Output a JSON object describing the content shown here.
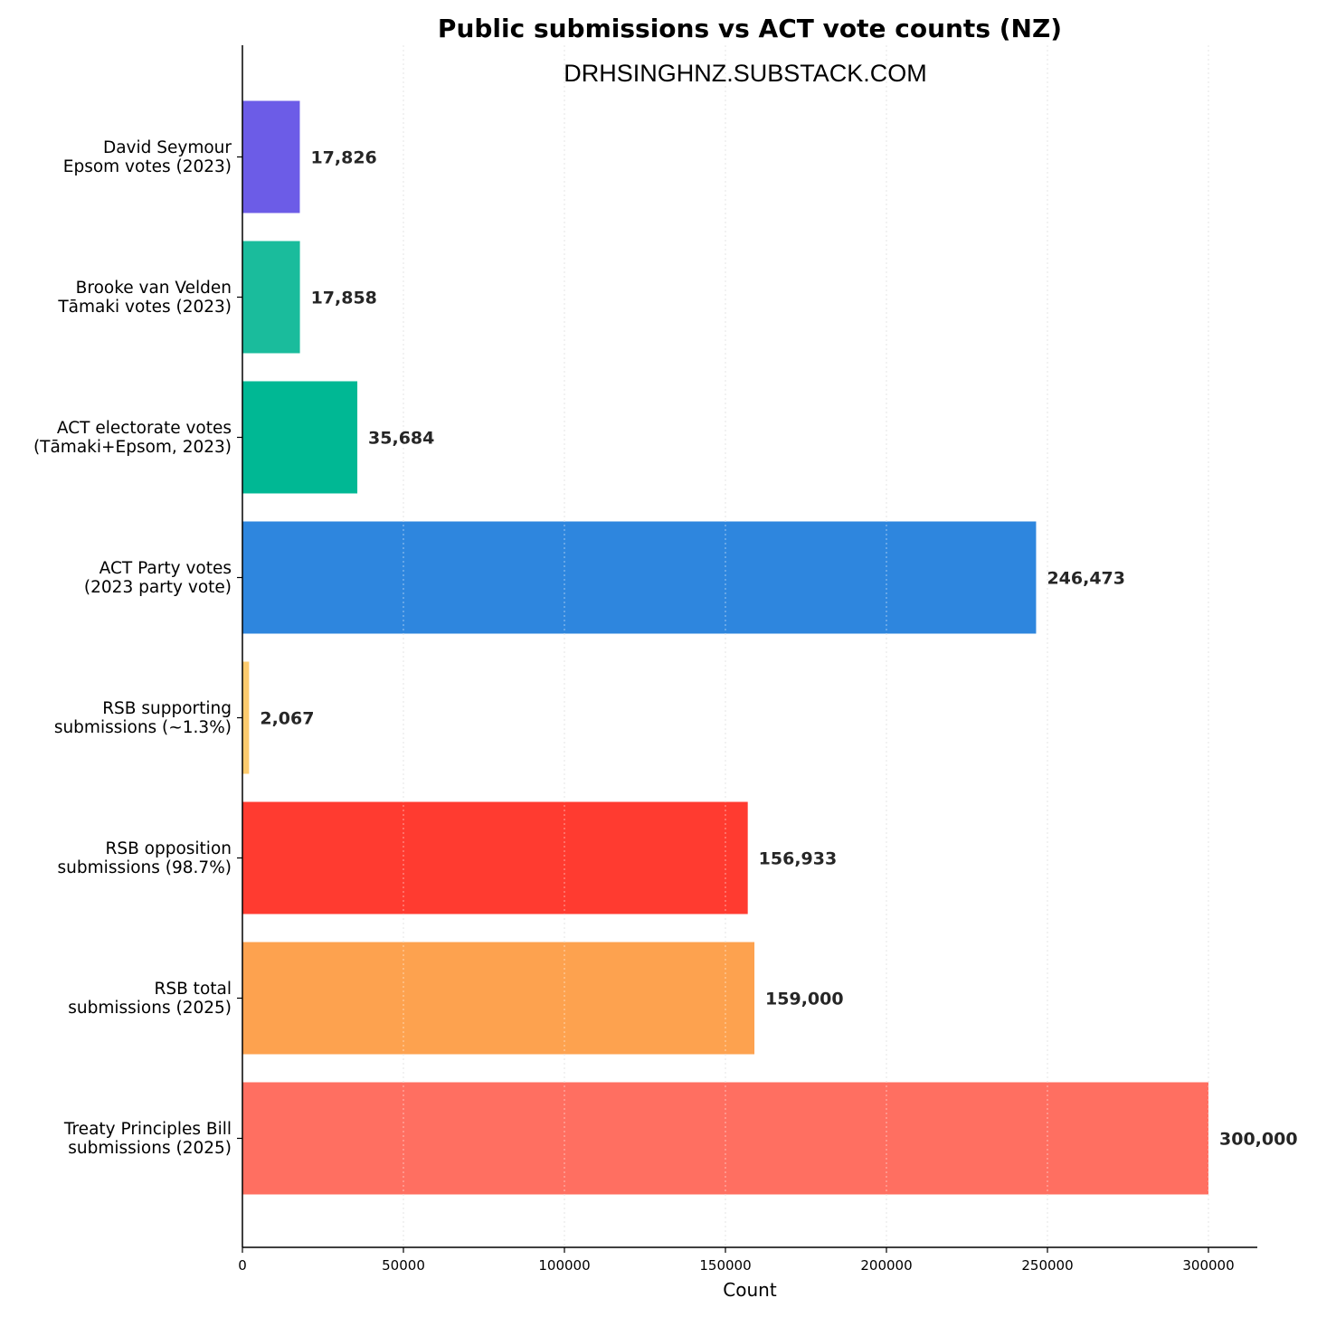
{
  "chart_data": {
    "type": "bar",
    "orientation": "horizontal",
    "title": "Public submissions vs ACT vote counts (NZ)",
    "watermark": "DRHSINGHNZ.SUBSTACK.COM",
    "xlabel": "Count",
    "ylabel": "",
    "xlim": [
      0,
      315000
    ],
    "x_ticks": [
      0,
      50000,
      100000,
      150000,
      200000,
      250000,
      300000
    ],
    "x_tick_labels": [
      "0",
      "50000",
      "100000",
      "150000",
      "200000",
      "250000",
      "300000"
    ],
    "grid": "vertical dotted",
    "legend": "none",
    "categories": [
      [
        "David Seymour",
        "Epsom votes (2023)"
      ],
      [
        "Brooke van Velden",
        "Tāmaki votes (2023)"
      ],
      [
        "ACT electorate votes",
        "(Tāmaki+Epsom, 2023)"
      ],
      [
        "ACT Party votes",
        "(2023 party vote)"
      ],
      [
        "RSB supporting",
        "submissions (~1.3%)"
      ],
      [
        "RSB opposition",
        "submissions (98.7%)"
      ],
      [
        "RSB total",
        "submissions (2025)"
      ],
      [
        "Treaty Principles Bill",
        "submissions (2025)"
      ]
    ],
    "values": [
      17826,
      17858,
      35684,
      246473,
      2067,
      156933,
      159000,
      300000
    ],
    "value_labels": [
      "17,826",
      "17,858",
      "35,684",
      "246,473",
      "2,067",
      "156,933",
      "159,000",
      "300,000"
    ],
    "colors": [
      "#6c5ce7",
      "#1abc9c",
      "#00b894",
      "#2e86de",
      "#fdcb6e",
      "#ff3b30",
      "#fda24f",
      "#ff6f61"
    ]
  }
}
